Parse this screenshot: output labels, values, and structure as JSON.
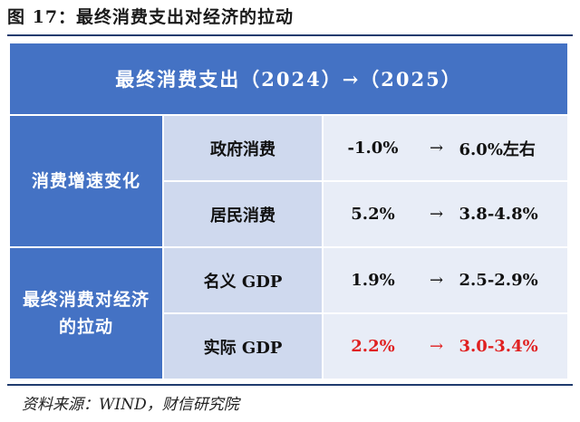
{
  "figure": {
    "title": "图 17：最终消费支出对经济的拉动",
    "source": "资料来源：WIND，财信研究院"
  },
  "table": {
    "header": "最终消费支出（2024）→（2025）",
    "groups": [
      {
        "label": "消费增速变化",
        "rows": [
          {
            "name": "政府消费",
            "from": "-1.0%",
            "arrow": "→",
            "to": "6.0%左右",
            "highlight": false
          },
          {
            "name": "居民消费",
            "from": "5.2%",
            "arrow": "→",
            "to": "3.8-4.8%",
            "highlight": false
          }
        ]
      },
      {
        "label": "最终消费对经济的拉动",
        "rows": [
          {
            "name": "名义 GDP",
            "from": "1.9%",
            "arrow": "→",
            "to": "2.5-2.9%",
            "highlight": false
          },
          {
            "name": "实际 GDP",
            "from": "2.2%",
            "arrow": "→",
            "to": "3.0-3.4%",
            "highlight": true
          }
        ]
      }
    ]
  },
  "colors": {
    "header_bg": "#4472c4",
    "sub_bg": "#cfd9ee",
    "value_bg": "#e8edf7",
    "highlight": "#e02020"
  }
}
